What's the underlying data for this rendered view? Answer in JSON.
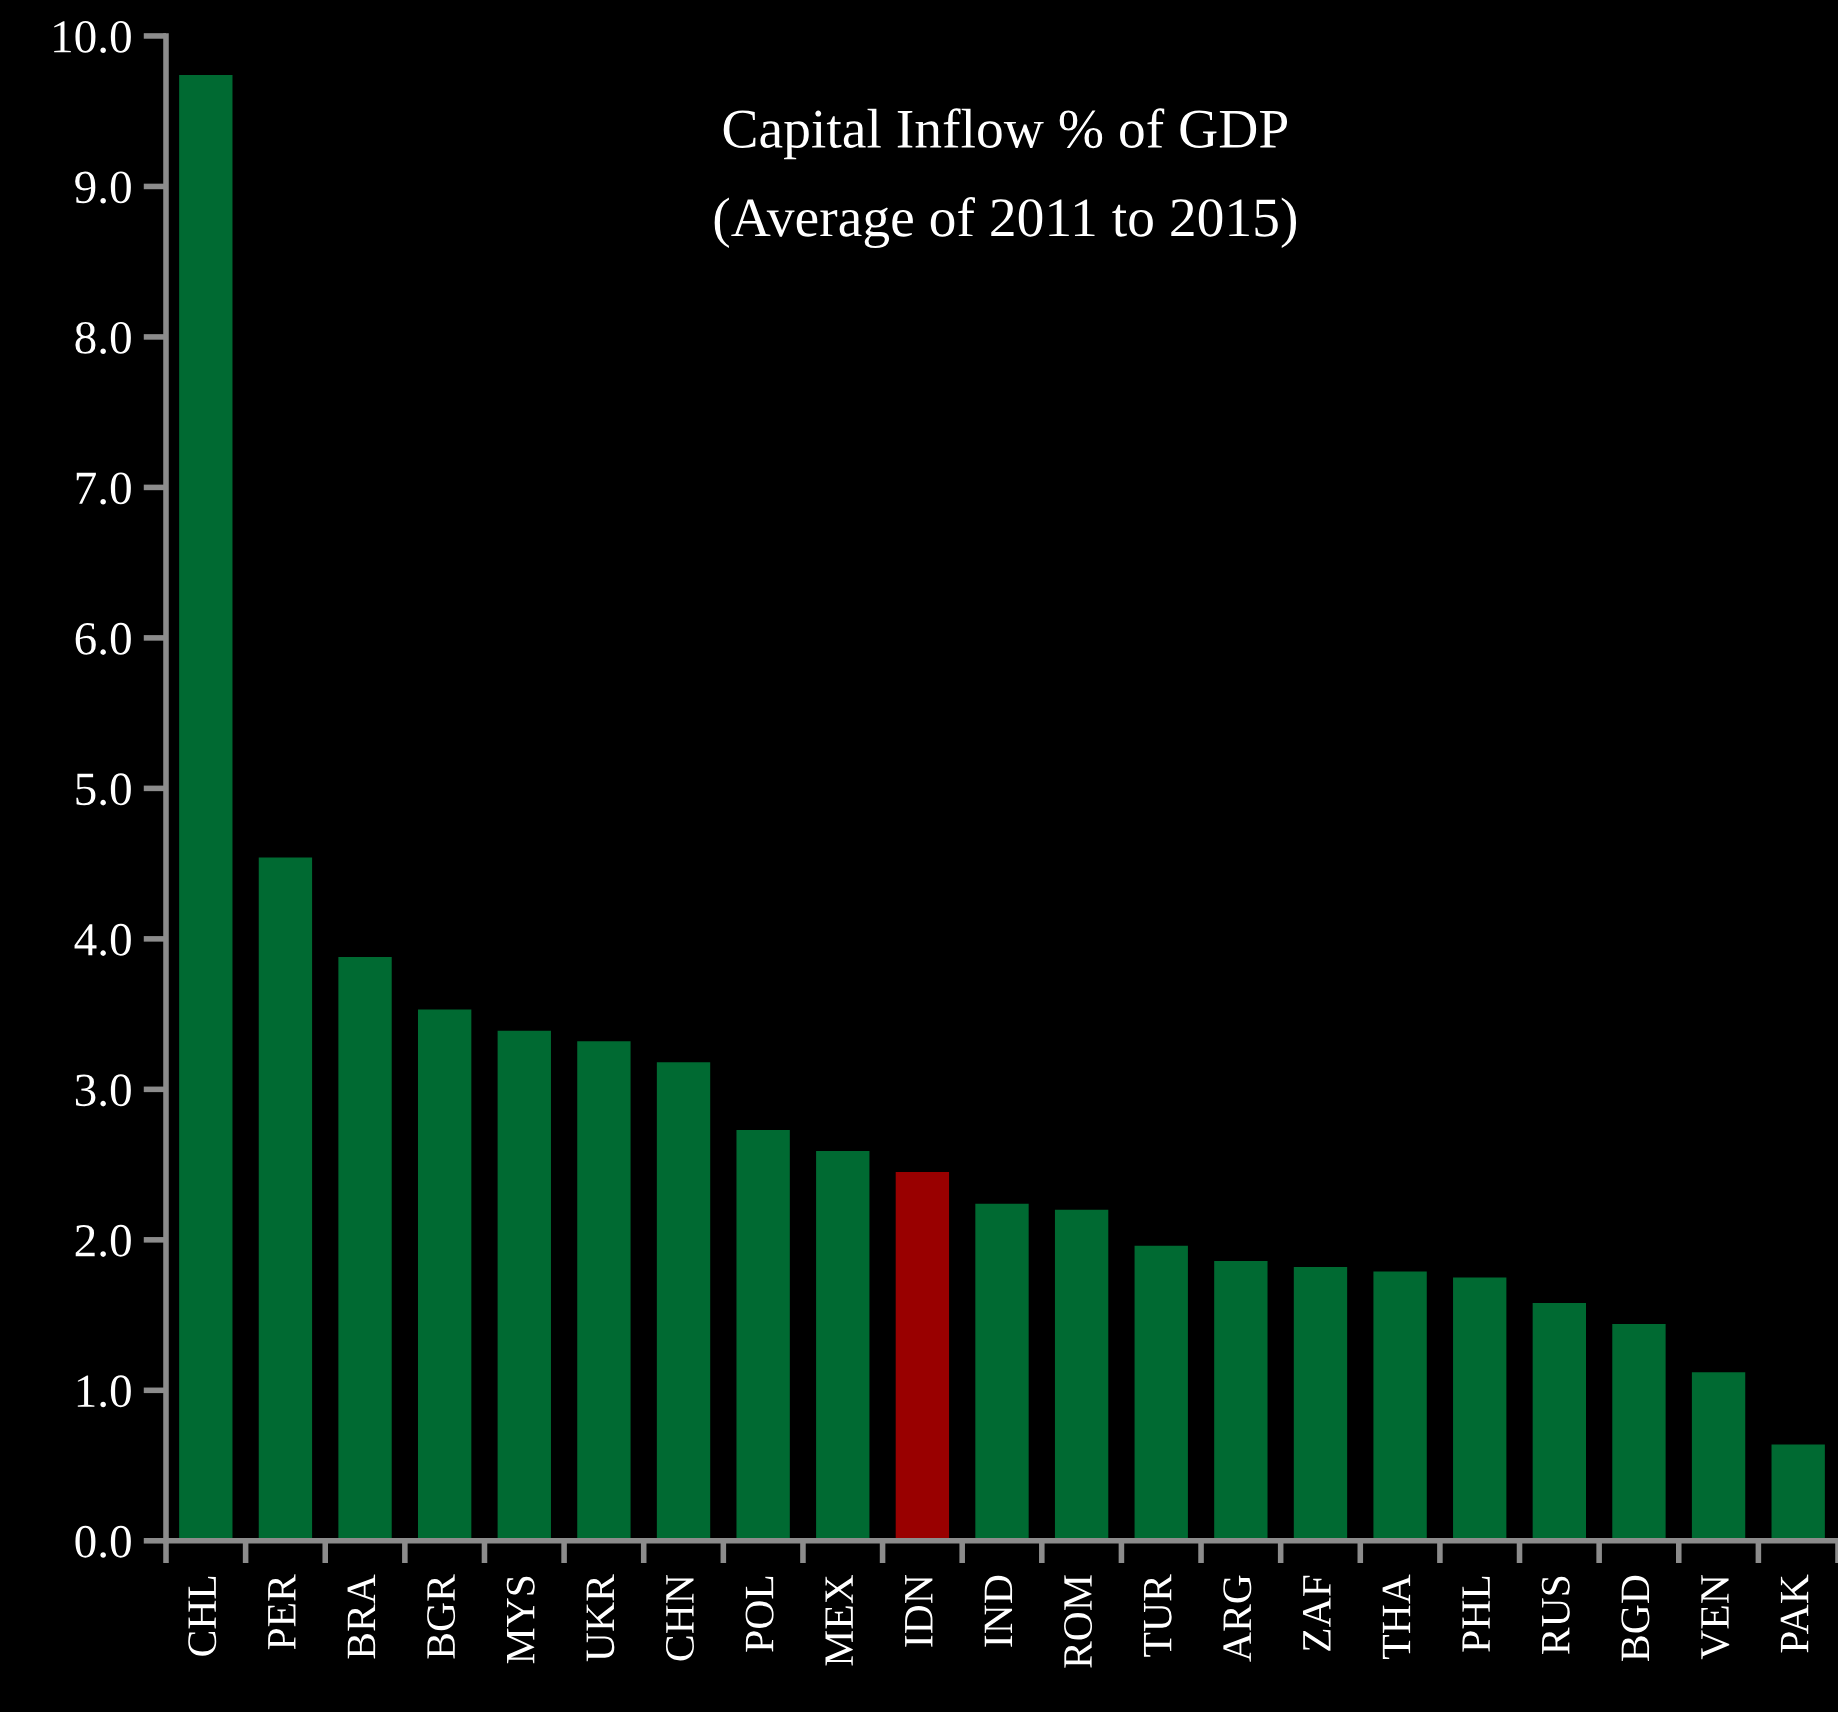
{
  "chart_data": {
    "type": "bar",
    "title": "Capital Inflow % of GDP",
    "subtitle": "(Average of 2011 to 2015)",
    "categories": [
      "CHL",
      "PER",
      "BRA",
      "BGR",
      "MYS",
      "UKR",
      "CHN",
      "POL",
      "MEX",
      "IDN",
      "IND",
      "ROM",
      "TUR",
      "ARG",
      "ZAF",
      "THA",
      "PHL",
      "RUS",
      "BGD",
      "VEN",
      "PAK"
    ],
    "values": [
      9.74,
      4.54,
      3.88,
      3.53,
      3.39,
      3.32,
      3.18,
      2.73,
      2.59,
      2.45,
      2.24,
      2.2,
      1.96,
      1.86,
      1.82,
      1.79,
      1.75,
      1.58,
      1.44,
      1.12,
      0.64
    ],
    "colors": [
      "#006a32",
      "#006a32",
      "#006a32",
      "#006a32",
      "#006a32",
      "#006a32",
      "#006a32",
      "#006a32",
      "#006a32",
      "#990000",
      "#006a32",
      "#006a32",
      "#006a32",
      "#006a32",
      "#006a32",
      "#006a32",
      "#006a32",
      "#006a32",
      "#006a32",
      "#006a32",
      "#006a32"
    ],
    "ylim": [
      0,
      10
    ],
    "yticks": [
      {
        "value": 0,
        "label": "0.0"
      },
      {
        "value": 1,
        "label": "1.0"
      },
      {
        "value": 2,
        "label": "2.0"
      },
      {
        "value": 3,
        "label": "3.0"
      },
      {
        "value": 4,
        "label": "4.0"
      },
      {
        "value": 5,
        "label": "5.0"
      },
      {
        "value": 6,
        "label": "6.0"
      },
      {
        "value": 7,
        "label": "7.0"
      },
      {
        "value": 8,
        "label": "8.0"
      },
      {
        "value": 9,
        "label": "9.0"
      },
      {
        "value": 10,
        "label": "10.0"
      }
    ]
  }
}
